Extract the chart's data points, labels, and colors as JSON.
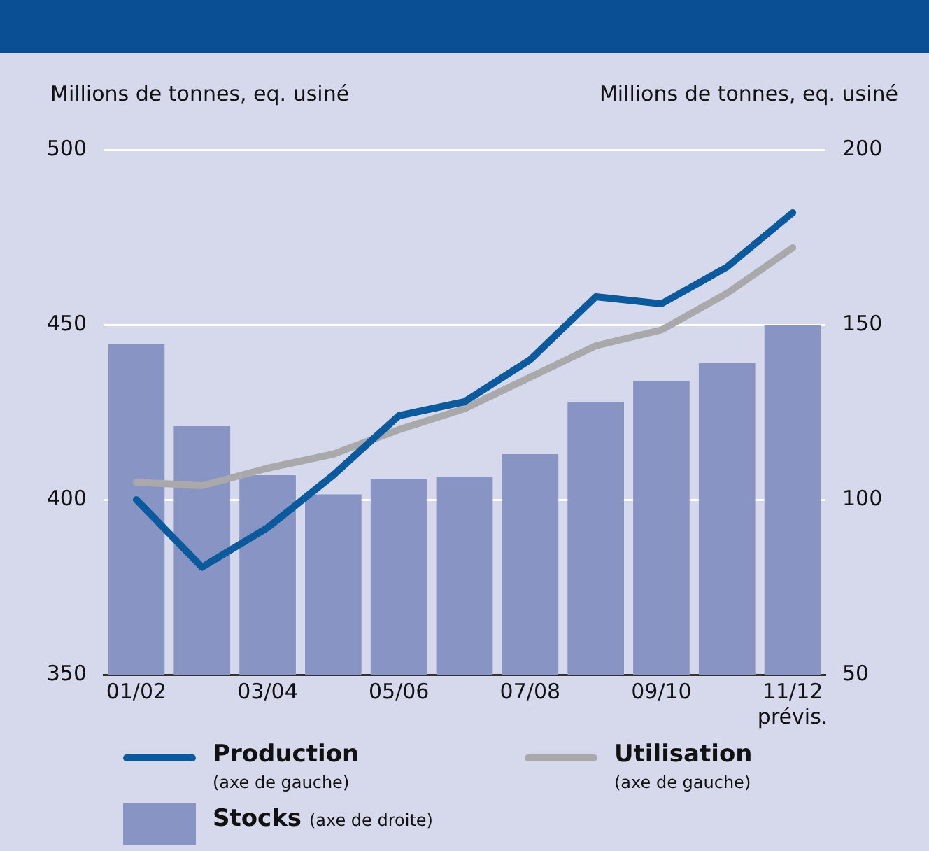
{
  "chart_data": {
    "type": "bar",
    "ylabel": "Millions de tonnes, eq. usiné",
    "y2label": "Millions de tonnes, eq. usiné",
    "categories": [
      "01/02",
      null,
      "03/04",
      null,
      "05/06",
      null,
      "07/08",
      null,
      "09/10",
      null,
      "11/12\nprévis."
    ],
    "series": [
      {
        "name": "Stocks (axe de droite)",
        "axis": "y2",
        "color": "#8895c4",
        "values": [
          144.5,
          121,
          107,
          101.5,
          106,
          106.6,
          113,
          128,
          134,
          139,
          150
        ]
      },
      {
        "name": "Production (axe de gauche)",
        "type": "line",
        "color": "#0b5a9e",
        "values": [
          400,
          380.7,
          392,
          407,
          424,
          428,
          440,
          458,
          456,
          466.5,
          482
        ]
      },
      {
        "name": "Utilisation (axe de gauche)",
        "type": "line",
        "color": "#a9a9ab",
        "values": [
          405,
          404,
          409,
          413,
          420,
          426,
          435,
          444,
          448.5,
          459,
          472
        ]
      }
    ],
    "ylim": [
      350,
      500
    ],
    "yticks": [
      350,
      400,
      450,
      500
    ],
    "y2lim": [
      50,
      200
    ],
    "y2ticks": [
      50,
      100,
      150,
      200
    ],
    "grid": "y",
    "legend": "bottom",
    "marker": "none",
    "line_style": "solid"
  }
}
